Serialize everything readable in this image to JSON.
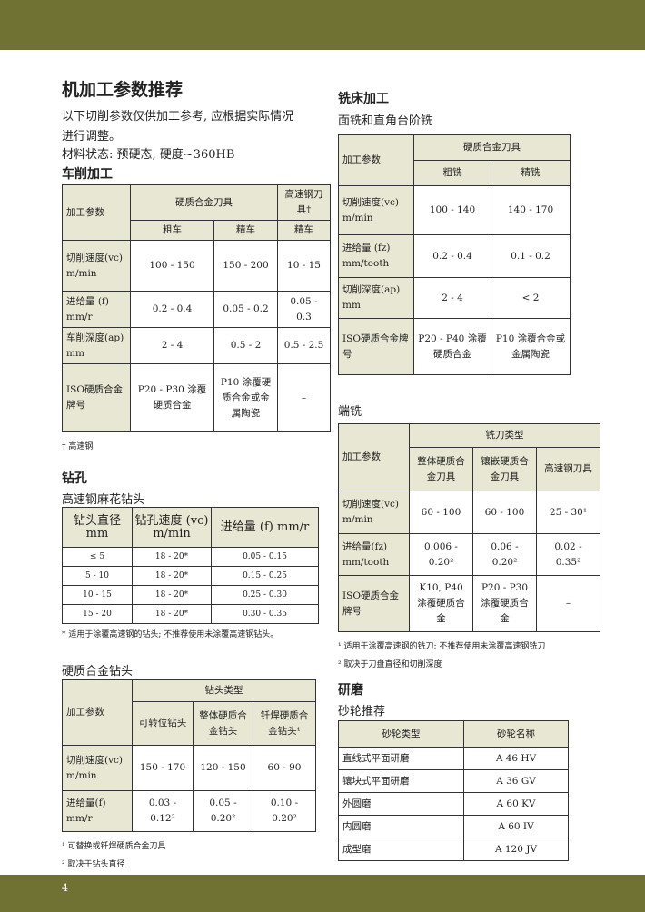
{
  "header": {
    "page_number": "4"
  },
  "title": "机加工参数推荐",
  "intro": "以下切削参数仅供加工参考, 应根据实际情况进行调整。",
  "material": "材料状态: 预硬态, 硬度~360HB",
  "turning": {
    "heading": "车削加工",
    "header": [
      "加工参数",
      "硬质合金刀具",
      "高速钢刀具†",
      "粗车",
      "精车",
      "精车"
    ],
    "rows": [
      [
        "切削速度(vc) m/min",
        "100 - 150",
        "150 - 200",
        "10 - 15"
      ],
      [
        "进给量 (f) mm/r",
        "0.2 - 0.4",
        "0.05 - 0.2",
        "0.05 - 0.3"
      ],
      [
        "车削深度(ap) mm",
        "2 - 4",
        "0.5 - 2",
        "0.5 - 2.5"
      ],
      [
        "ISO硬质合金牌号",
        "P20 - P30 涂覆硬质合金",
        "P10 涂覆硬质合金或金属陶瓷",
        "–"
      ]
    ],
    "footnote": "† 高速钢"
  },
  "drilling": {
    "heading": "钻孔",
    "subheading": "高速钢麻花钻头",
    "header": [
      "钻头直径 mm",
      "钻孔速度 (vc) m/min",
      "进给量 (f) mm/r"
    ],
    "rows": [
      [
        "≤ 5",
        "18 - 20*",
        "0.05 - 0.15"
      ],
      [
        "5 - 10",
        "18 - 20*",
        "0.15 - 0.25"
      ],
      [
        "10 - 15",
        "18 - 20*",
        "0.25 - 0.30"
      ],
      [
        "15 - 20",
        "18 - 20*",
        "0.30 - 0.35"
      ]
    ],
    "footnote": "* 适用于涂覆高速钢的钻头; 不推荐使用未涂覆高速钢钻头。"
  },
  "carbide_drill": {
    "heading": "硬质合金钻头",
    "header": [
      "加工参数",
      "钻头类型",
      "可转位钻头",
      "整体硬质合金钻头",
      "钎焊硬质合金钻头¹"
    ],
    "rows": [
      [
        "切削速度(vc) m/min",
        "150 - 170",
        "120 - 150",
        "60 - 90"
      ],
      [
        "进给量(f) mm/r",
        "0.03 - 0.12²",
        "0.05 - 0.20²",
        "0.10 - 0.20²"
      ]
    ],
    "footnotes": [
      "¹ 可替换或钎焊硬质合金刀具",
      "² 取决于钻头直径"
    ]
  },
  "milling": {
    "heading": "铣床加工",
    "subheading": "面铣和直角台阶铣",
    "header": [
      "加工参数",
      "硬质合金刀具",
      "粗铣",
      "精铣"
    ],
    "rows": [
      [
        "切削速度(vc) m/min",
        "100 - 140",
        "140 - 170"
      ],
      [
        "进给量 (fz) mm/tooth",
        "0.2 - 0.4",
        "0.1 - 0.2"
      ],
      [
        "切削深度(ap) mm",
        "2 - 4",
        "< 2"
      ],
      [
        "ISO硬质合金牌号",
        "P20 - P40 涂覆硬质合金",
        "P10 涂覆合金或金属陶瓷"
      ]
    ]
  },
  "end_milling": {
    "heading": "端铣",
    "header": [
      "加工参数",
      "铣刀类型",
      "整体硬质合金刀具",
      "镶嵌硬质合金刀具",
      "高速钢刀具"
    ],
    "rows": [
      [
        "切削速度(vc) m/min",
        "60 - 100",
        "60 - 100",
        "25 - 30¹"
      ],
      [
        "进给量(fz) mm/tooth",
        "0.006 - 0.20²",
        "0.06 - 0.20²",
        "0.02 - 0.35²"
      ],
      [
        "ISO硬质合金牌号",
        "K10, P40 涂覆硬质合金",
        "P20 - P30 涂覆硬质合金",
        "–"
      ]
    ],
    "footnotes": [
      "¹ 适用于涂覆高速钢的铣刀; 不推荐使用未涂覆高速钢铣刀",
      "² 取决于刀盘直径和切削深度"
    ]
  },
  "grinding": {
    "heading": "研磨",
    "subheading": "砂轮推荐",
    "header": [
      "砂轮类型",
      "砂轮名称"
    ],
    "rows": [
      [
        "直线式平面研磨",
        "A 46 HV"
      ],
      [
        "镶块式平面研磨",
        "A 36 GV"
      ],
      [
        "外圆磨",
        "A 60 KV"
      ],
      [
        "内圆磨",
        "A 60 IV"
      ],
      [
        "成型磨",
        "A 120 JV"
      ]
    ]
  }
}
